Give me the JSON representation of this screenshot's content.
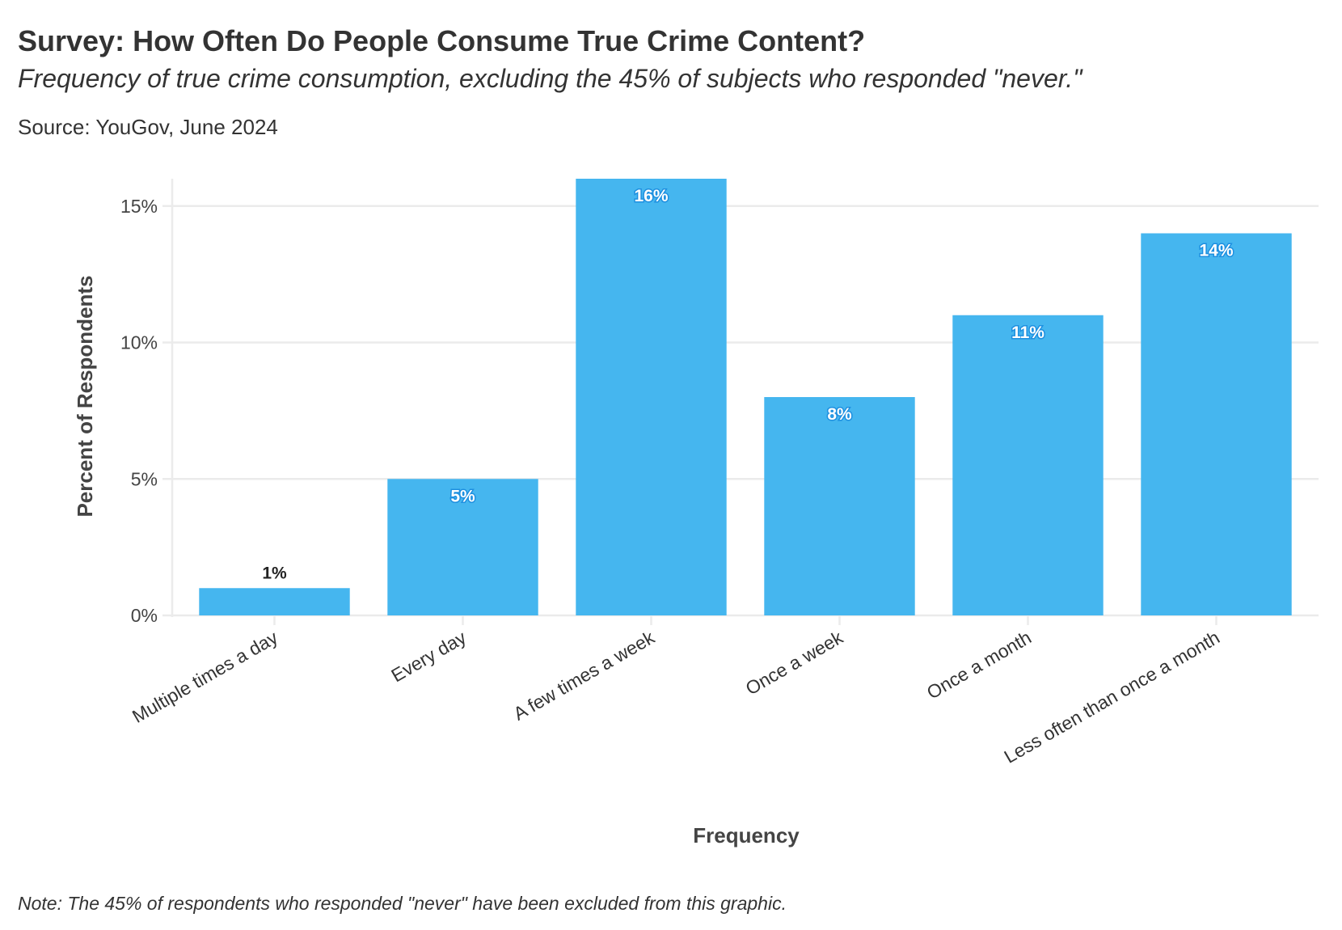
{
  "title": "Survey: How Often Do People Consume True Crime Content?",
  "subtitle": "Frequency of true crime consumption, excluding the 45% of subjects who responded \"never.\"",
  "source": "Source: YouGov, June 2024",
  "note": "Note: The 45% of respondents who responded \"never\" have been excluded from this graphic.",
  "colors": {
    "bar": "#45b6ef",
    "text": "#333333",
    "grid": "#ebebeb"
  },
  "chart_data": {
    "type": "bar",
    "title": "Survey: How Often Do People Consume True Crime Content?",
    "xlabel": "Frequency",
    "ylabel": "Percent of Respondents",
    "categories": [
      "Multiple times a day",
      "Every day",
      "A few times a week",
      "Once a week",
      "Once a month",
      "Less often than once a month"
    ],
    "values": [
      1,
      5,
      16,
      8,
      11,
      14
    ],
    "data_labels": [
      "1%",
      "5%",
      "16%",
      "8%",
      "11%",
      "14%"
    ],
    "yticks": [
      0,
      5,
      10,
      15
    ],
    "ytick_labels": [
      "0%",
      "5%",
      "10%",
      "15%"
    ],
    "ylim": [
      0,
      16
    ],
    "grid": "horizontal",
    "legend": "none"
  }
}
